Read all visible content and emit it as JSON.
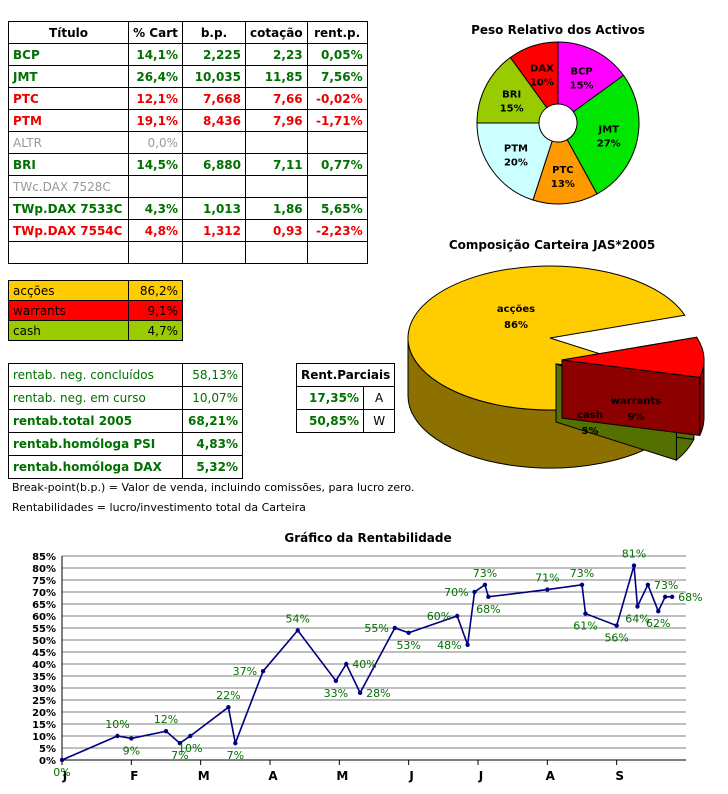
{
  "holdings": {
    "headers": [
      "Título",
      "% Cart",
      "b.p.",
      "cotação",
      "rent.p."
    ],
    "rows": [
      {
        "name": "BCP",
        "pct": "14,1%",
        "bp": "2,225",
        "quote": "2,23",
        "rent": "0,05%",
        "color": "#007000"
      },
      {
        "name": "JMT",
        "pct": "26,4%",
        "bp": "10,035",
        "quote": "11,85",
        "rent": "7,56%",
        "color": "#007000"
      },
      {
        "name": "PTC",
        "pct": "12,1%",
        "bp": "7,668",
        "quote": "7,66",
        "rent": "-0,02%",
        "color": "#ee0000"
      },
      {
        "name": "PTM",
        "pct": "19,1%",
        "bp": "8,436",
        "quote": "7,96",
        "rent": "-1,71%",
        "color": "#ee0000"
      },
      {
        "name": "ALTR",
        "pct": "0,0%",
        "bp": "",
        "quote": "",
        "rent": "",
        "color": "#999999"
      },
      {
        "name": "BRI",
        "pct": "14,5%",
        "bp": "6,880",
        "quote": "7,11",
        "rent": "0,77%",
        "color": "#007000"
      },
      {
        "name": "TWc.DAX 7528C",
        "pct": "",
        "bp": "",
        "quote": "",
        "rent": "",
        "color": "#999999"
      },
      {
        "name": "TWp.DAX 7533C",
        "pct": "4,3%",
        "bp": "1,013",
        "quote": "1,86",
        "rent": "5,65%",
        "color": "#007000"
      },
      {
        "name": "TWp.DAX 7554C",
        "pct": "4,8%",
        "bp": "1,312",
        "quote": "0,93",
        "rent": "-2,23%",
        "color": "#ee0000"
      },
      {
        "name": "",
        "pct": "",
        "bp": "",
        "quote": "",
        "rent": "",
        "color": "#000000"
      }
    ]
  },
  "allocation": [
    {
      "label": "acções",
      "value": "86,2%",
      "bg": "#ffcc00"
    },
    {
      "label": "warrants",
      "value": "9,1%",
      "bg": "#ff0000"
    },
    {
      "label": "cash",
      "value": "4,7%",
      "bg": "#99cc00"
    }
  ],
  "returns": [
    {
      "label": "rentab. neg. concluídos",
      "value": "58,13%",
      "bold": false
    },
    {
      "label": "rentab. neg. em curso",
      "value": "10,07%",
      "bold": false
    },
    {
      "label": "rentab.total 2005",
      "value": "68,21%",
      "bold": true
    },
    {
      "label": "rentab.homóloga PSI",
      "value": "4,83%",
      "bold": true
    },
    {
      "label": "rentab.homóloga DAX",
      "value": "5,32%",
      "bold": true
    }
  ],
  "partials": {
    "title": "Rent.Parciais",
    "rows": [
      {
        "value": "17,35%",
        "code": "A"
      },
      {
        "value": "50,85%",
        "code": "W"
      }
    ]
  },
  "notes": {
    "breakpoint": "Break-point(b.p.) = Valor de venda, incluindo comissões, para lucro zero.",
    "returns": "Rentabilidades = lucro/investimento total da Carteira"
  },
  "chart_data": [
    {
      "type": "pie",
      "title": "Peso Relativo dos Activos",
      "donut": true,
      "slices": [
        {
          "label": "BCP",
          "value": 15,
          "display": "15%",
          "color": "#ff00ff"
        },
        {
          "label": "JMT",
          "value": 27,
          "display": "27%",
          "color": "#00e600"
        },
        {
          "label": "PTC",
          "value": 13,
          "display": "13%",
          "color": "#ff9900"
        },
        {
          "label": "PTM",
          "value": 20,
          "display": "20%",
          "color": "#ccffff"
        },
        {
          "label": "BRI",
          "value": 15,
          "display": "15%",
          "color": "#99cc00"
        },
        {
          "label": "DAX",
          "value": 10,
          "display": "10%",
          "color": "#ff0000"
        }
      ]
    },
    {
      "type": "pie",
      "title": "Composição Carteira JAS*2005",
      "three_d": true,
      "slices": [
        {
          "label": "acções",
          "value": 86,
          "display": "86%",
          "color": "#ffcc00"
        },
        {
          "label": "warrants",
          "value": 9,
          "display": "9%",
          "color": "#ff0000"
        },
        {
          "label": "cash",
          "value": 5,
          "display": "5%",
          "color": "#99cc00"
        }
      ]
    },
    {
      "type": "line",
      "title": "Gráfico da Rentabilidade",
      "ylim": [
        0,
        85
      ],
      "ytick_step": 5,
      "ytick_suffix": "%",
      "months": [
        "J",
        "F",
        "M",
        "A",
        "M",
        "J",
        "J",
        "A",
        "S"
      ],
      "grid": true,
      "line_color": "#000080",
      "label_color": "#007000",
      "x": [
        0,
        0.8,
        1,
        1.5,
        1.7,
        1.85,
        2.4,
        2.5,
        2.9,
        3.4,
        3.95,
        4.1,
        4.3,
        4.8,
        5.0,
        5.7,
        5.85,
        5.95,
        6.1,
        6.15,
        7.0,
        7.5,
        7.55,
        8.0,
        8.25,
        8.3,
        8.45,
        8.6,
        8.7,
        8.8
      ],
      "values": [
        0,
        10,
        9,
        12,
        7,
        10,
        22,
        7,
        37,
        54,
        33,
        40,
        28,
        55,
        53,
        60,
        48,
        70,
        73,
        68,
        71,
        73,
        61,
        56,
        81,
        64,
        73,
        62,
        68,
        68
      ],
      "labeled": [
        {
          "i": 0,
          "text": "0%",
          "pos": "below"
        },
        {
          "i": 1,
          "text": "10%",
          "pos": "above"
        },
        {
          "i": 2,
          "text": "9%",
          "pos": "below"
        },
        {
          "i": 3,
          "text": "12%",
          "pos": "above"
        },
        {
          "i": 4,
          "text": "7%",
          "pos": "below"
        },
        {
          "i": 5,
          "text": "10%",
          "pos": "below"
        },
        {
          "i": 6,
          "text": "22%",
          "pos": "above"
        },
        {
          "i": 7,
          "text": "7%",
          "pos": "below"
        },
        {
          "i": 8,
          "text": "37%",
          "pos": "left"
        },
        {
          "i": 9,
          "text": "54%",
          "pos": "above"
        },
        {
          "i": 10,
          "text": "33%",
          "pos": "below"
        },
        {
          "i": 11,
          "text": "40%",
          "pos": "right"
        },
        {
          "i": 12,
          "text": "28%",
          "pos": "right"
        },
        {
          "i": 13,
          "text": "55%",
          "pos": "left"
        },
        {
          "i": 14,
          "text": "53%",
          "pos": "below"
        },
        {
          "i": 15,
          "text": "60%",
          "pos": "left"
        },
        {
          "i": 16,
          "text": "48%",
          "pos": "left"
        },
        {
          "i": 17,
          "text": "70%",
          "pos": "left"
        },
        {
          "i": 18,
          "text": "73%",
          "pos": "above"
        },
        {
          "i": 19,
          "text": "68%",
          "pos": "below"
        },
        {
          "i": 20,
          "text": "71%",
          "pos": "above"
        },
        {
          "i": 21,
          "text": "73%",
          "pos": "above"
        },
        {
          "i": 22,
          "text": "61%",
          "pos": "below"
        },
        {
          "i": 23,
          "text": "56%",
          "pos": "below"
        },
        {
          "i": 24,
          "text": "81%",
          "pos": "above"
        },
        {
          "i": 25,
          "text": "64%",
          "pos": "below"
        },
        {
          "i": 26,
          "text": "73%",
          "pos": "right"
        },
        {
          "i": 27,
          "text": "62%",
          "pos": "below"
        },
        {
          "i": 29,
          "text": "68%",
          "pos": "right"
        }
      ]
    }
  ]
}
